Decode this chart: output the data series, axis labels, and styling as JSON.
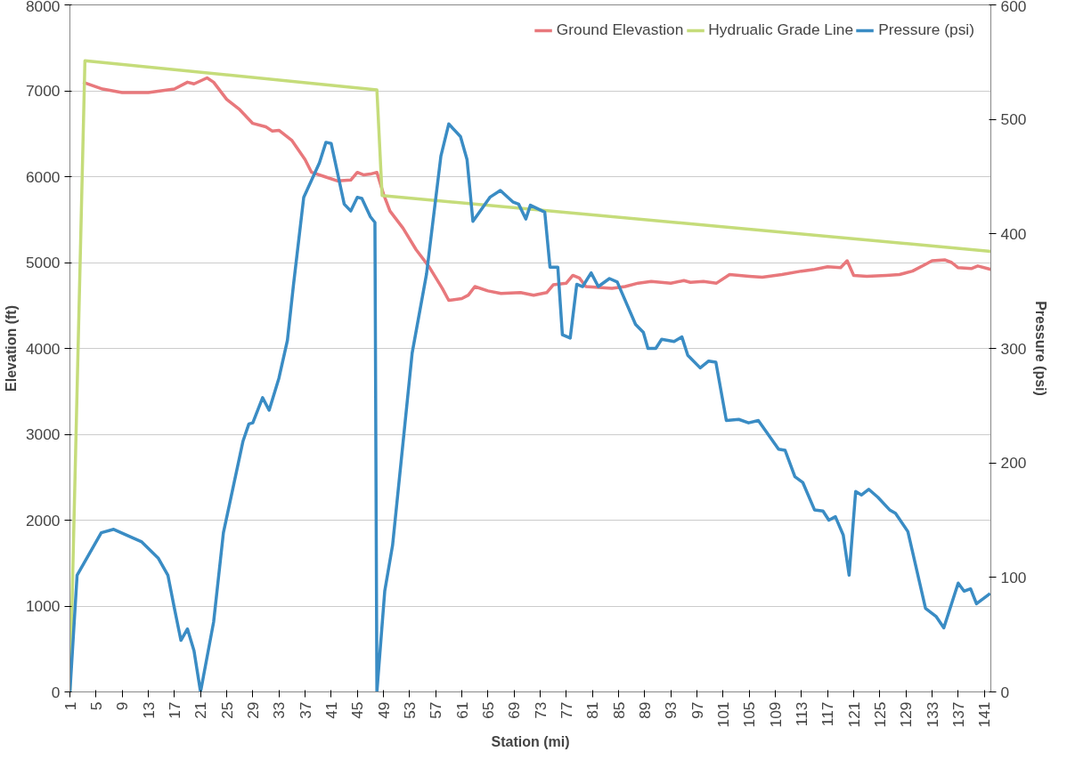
{
  "chart_data": {
    "type": "line",
    "xlabel": "Station (mi)",
    "ylabel": "Elevation (ft)",
    "y2label": "Pressure (psi)",
    "xlim": [
      1,
      142
    ],
    "xticks": [
      1,
      5,
      9,
      13,
      17,
      21,
      25,
      29,
      33,
      37,
      41,
      45,
      49,
      53,
      57,
      61,
      65,
      69,
      73,
      77,
      81,
      85,
      89,
      93,
      97,
      101,
      105,
      109,
      113,
      117,
      121,
      125,
      129,
      133,
      137,
      141
    ],
    "ylim": [
      0,
      8000
    ],
    "yticks": [
      0,
      1000,
      2000,
      3000,
      4000,
      5000,
      6000,
      7000,
      8000
    ],
    "y2lim": [
      0,
      600
    ],
    "y2ticks": [
      0,
      100,
      200,
      300,
      400,
      500,
      600
    ],
    "grid": "y",
    "legend": "top right",
    "series": [
      {
        "name": "Ground Elevastion",
        "color": "#e8787c",
        "x": [
          3,
          6,
          9,
          13,
          17,
          19,
          20,
          22,
          23,
          25,
          27,
          29,
          31,
          32,
          33,
          35,
          37,
          38,
          40,
          42,
          44,
          45,
          46,
          47,
          48,
          49,
          50,
          52,
          54,
          56,
          58,
          59,
          61,
          62,
          63,
          65,
          67,
          70,
          72,
          74,
          75,
          77,
          78,
          79,
          80,
          84,
          86,
          88,
          90,
          93,
          95,
          96,
          98,
          100,
          102,
          105,
          107,
          110,
          113,
          115,
          117,
          119,
          120,
          121,
          123,
          126,
          128,
          130,
          132,
          133,
          135,
          136,
          137,
          139,
          140,
          142
        ],
        "values": [
          7100,
          7020,
          6980,
          6980,
          7020,
          7100,
          7080,
          7150,
          7100,
          6900,
          6780,
          6620,
          6580,
          6530,
          6540,
          6420,
          6200,
          6050,
          6000,
          5950,
          5960,
          6050,
          6020,
          6030,
          6050,
          5800,
          5600,
          5400,
          5150,
          4950,
          4700,
          4560,
          4580,
          4620,
          4720,
          4670,
          4640,
          4650,
          4620,
          4650,
          4740,
          4760,
          4850,
          4820,
          4720,
          4700,
          4720,
          4760,
          4780,
          4760,
          4790,
          4770,
          4780,
          4760,
          4860,
          4840,
          4830,
          4860,
          4900,
          4920,
          4950,
          4940,
          5020,
          4850,
          4840,
          4850,
          4860,
          4900,
          4980,
          5020,
          5030,
          5000,
          4940,
          4930,
          4960,
          4920
        ]
      },
      {
        "name": "Hydrualic Grade Line",
        "color": "#c5dc7a",
        "x": [
          1,
          3.3,
          48,
          48.8,
          142
        ],
        "values": [
          0,
          7350,
          7010,
          5780,
          5130
        ]
      },
      {
        "name": "Pressure (psi)",
        "color": "#3a8cc4",
        "axis": "y2",
        "x": [
          1,
          2.1,
          5.8,
          7.7,
          12,
          14.5,
          16,
          17,
          18,
          19,
          20,
          21,
          23,
          24.5,
          26,
          27.5,
          28.4,
          29,
          30.5,
          31.5,
          33,
          34.3,
          35.2,
          36.8,
          39.2,
          40.2,
          41,
          43,
          44,
          45,
          45.7,
          47,
          47.7,
          48,
          49.2,
          50.4,
          53.4,
          55.6,
          57.8,
          59,
          60.8,
          61.8,
          62.7,
          65.3,
          66.9,
          68.8,
          69.7,
          70.8,
          71.5,
          73.7,
          74.5,
          75.7,
          76.4,
          77.6,
          78.6,
          79.5,
          80.8,
          81.9,
          83.6,
          84.8,
          87.6,
          88.8,
          89.5,
          90.7,
          91.6,
          93.5,
          94.7,
          95.6,
          97.5,
          98.8,
          99.9,
          101.5,
          103.4,
          104.9,
          106.4,
          109.5,
          110.5,
          112,
          113.2,
          115,
          116.3,
          117.2,
          118.2,
          119.4,
          120.3,
          121.3,
          122.2,
          123.3,
          124.7,
          126.5,
          127.4,
          129.3,
          132,
          133.6,
          134.8,
          137,
          137.9,
          138.9,
          139.8,
          141.9
        ],
        "values": [
          0,
          102,
          139,
          142,
          131,
          117,
          102,
          73,
          45,
          55,
          36,
          0,
          61,
          139,
          179,
          219,
          234,
          235,
          257,
          246,
          274,
          307,
          354,
          432,
          462,
          480,
          479,
          426,
          420,
          432,
          431,
          415,
          410,
          0,
          88,
          128,
          296,
          365,
          468,
          496,
          485,
          465,
          411,
          432,
          438,
          428,
          426,
          413,
          425,
          419,
          371,
          371,
          312,
          309,
          356,
          354,
          366,
          354,
          361,
          358,
          321,
          314,
          300,
          300,
          308,
          306,
          310,
          294,
          283,
          289,
          288,
          237,
          238,
          235,
          237,
          212,
          211,
          188,
          183,
          159,
          158,
          150,
          153,
          137,
          102,
          175,
          172,
          177,
          170,
          159,
          156,
          140,
          73,
          66,
          56,
          95,
          88,
          90,
          77,
          86
        ]
      }
    ]
  }
}
